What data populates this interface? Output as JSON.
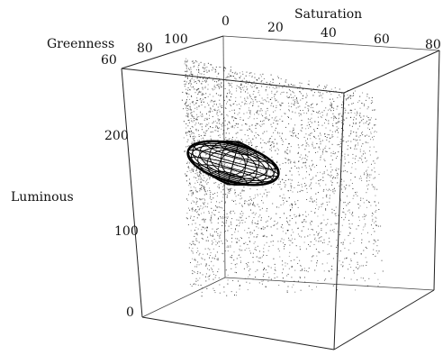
{
  "chart_data": {
    "type": "scatter",
    "projection": "3d",
    "axes": {
      "x": {
        "label": "Saturation",
        "ticks": [
          "0",
          "20",
          "40",
          "60",
          "80"
        ],
        "range": [
          0,
          80
        ]
      },
      "y": {
        "label": "Greenness",
        "ticks": [
          "60",
          "80",
          "100"
        ],
        "range": [
          60,
          100
        ]
      },
      "z": {
        "label": "Luminous",
        "ticks": [
          "0",
          "100",
          "200"
        ],
        "range": [
          0,
          250
        ]
      }
    },
    "ellipsoid": {
      "saturation": 25,
      "greenness": 90,
      "luminous": 185
    },
    "grid": false,
    "legend": "none",
    "colors": {
      "points": "#222222",
      "box": "#222222",
      "ellipsoid": "#000000"
    }
  }
}
